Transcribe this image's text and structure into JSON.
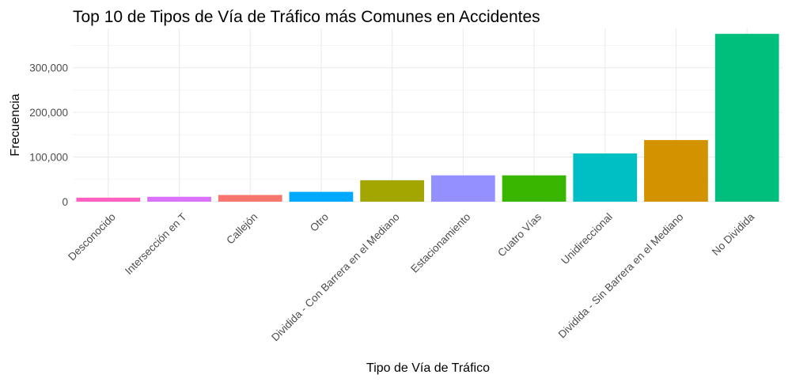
{
  "chart_data": {
    "type": "bar",
    "title": "Top 10 de Tipos de Vía de Tráfico más Comunes en Accidentes",
    "xlabel": "Tipo de Vía de Tráfico",
    "ylabel": "Frecuencia",
    "categories": [
      "Desconocido",
      "Intersección en T",
      "Callejón",
      "Otro",
      "Dividida - Con Barrera en el Mediano",
      "Estacionamiento",
      "Cuatro Vías",
      "Unidireccional",
      "Dividida - Sin Barrera en el Mediano",
      "No Dividida"
    ],
    "values": [
      9000,
      11000,
      15000,
      22000,
      48000,
      59000,
      59000,
      108000,
      138000,
      376000
    ],
    "colors": [
      "#FF61C3",
      "#DB72FB",
      "#F8766D",
      "#00A9FF",
      "#A3A500",
      "#9590FF",
      "#39B600",
      "#00BFC4",
      "#D39200",
      "#00BF7D"
    ],
    "ylim": [
      0,
      388000
    ],
    "yticks": [
      0,
      100000,
      200000,
      300000
    ],
    "ytick_labels": [
      "0",
      "100,000",
      "200,000",
      "300,000"
    ],
    "grid": true,
    "legend": "none"
  }
}
